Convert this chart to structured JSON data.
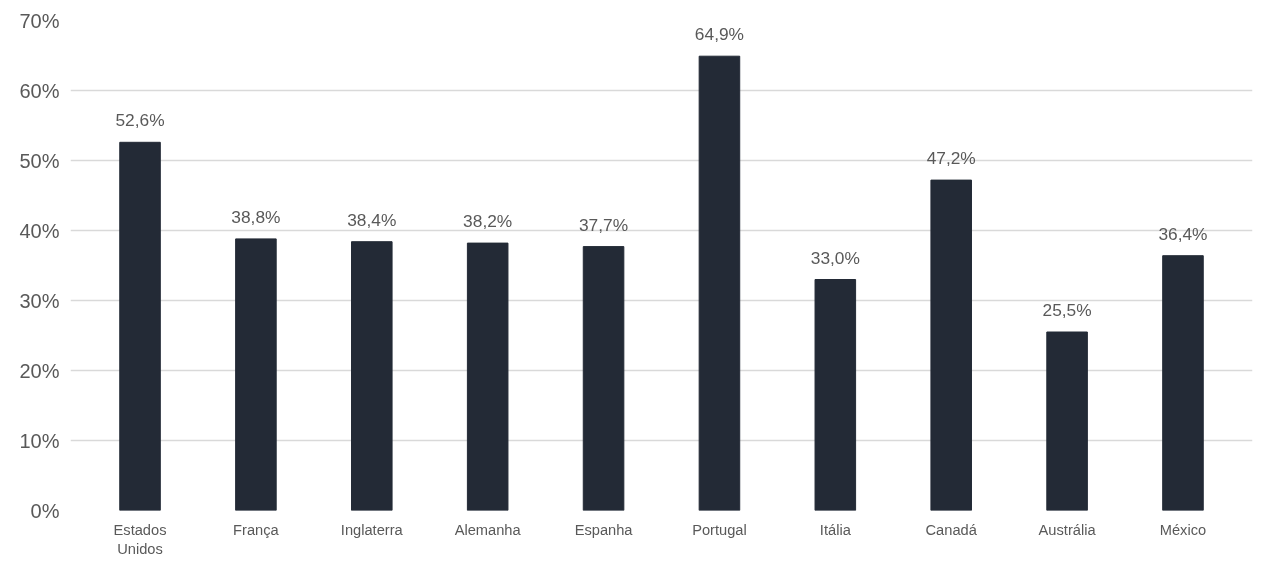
{
  "chart_data": {
    "type": "bar",
    "categories": [
      "Estados Unidos",
      "França",
      "Inglaterra",
      "Alemanha",
      "Espanha",
      "Portugal",
      "Itália",
      "Canadá",
      "Austrália",
      "México"
    ],
    "values": [
      52.6,
      38.8,
      38.4,
      38.2,
      37.7,
      64.9,
      33.0,
      47.2,
      25.5,
      36.4
    ],
    "value_labels": [
      "52,6%",
      "38,8%",
      "38,4%",
      "38,2%",
      "37,7%",
      "64,9%",
      "33,0%",
      "47,2%",
      "25,5%",
      "36,4%"
    ],
    "color": "#232a36",
    "ylim": [
      0,
      70
    ],
    "yticks": [
      {
        "value": 0,
        "label": "0%"
      },
      {
        "value": 10,
        "label": "10%"
      },
      {
        "value": 20,
        "label": "20%"
      },
      {
        "value": 30,
        "label": "30%"
      },
      {
        "value": 40,
        "label": "40%"
      },
      {
        "value": 50,
        "label": "50%"
      },
      {
        "value": 60,
        "label": "60%"
      },
      {
        "value": 70,
        "label": "70%"
      }
    ],
    "grid": "y"
  }
}
